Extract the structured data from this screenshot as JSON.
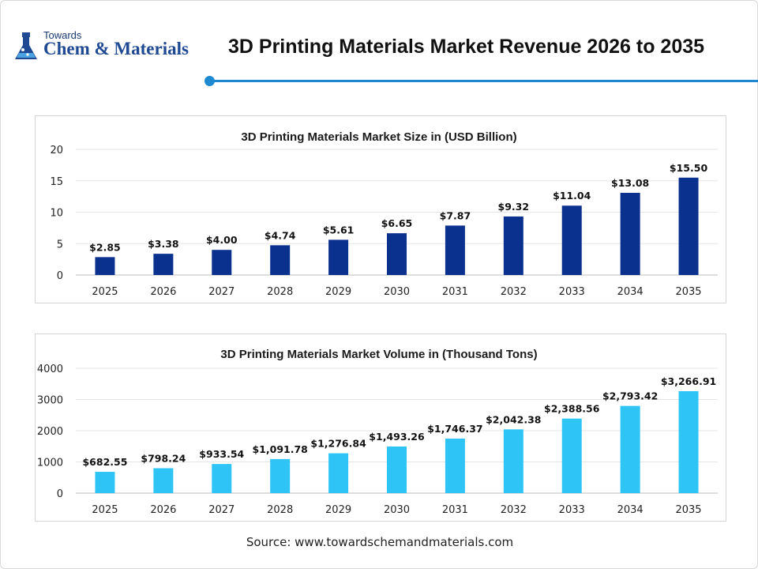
{
  "header": {
    "logo_line1": "Towards",
    "logo_line2": "Chem & Materials",
    "title": "3D Printing Materials Market Revenue 2026 to 2035"
  },
  "colors": {
    "accent": "#1e88d0",
    "size_bar": "#0b318f",
    "volume_bar": "#2ec4f6"
  },
  "source": "Source: www.towardschemandmaterials.com",
  "chart_data": [
    {
      "type": "bar",
      "title": "3D Printing Materials Market Size in (USD Billion)",
      "categories": [
        "2025",
        "2026",
        "2027",
        "2028",
        "2029",
        "2030",
        "2031",
        "2032",
        "2033",
        "2034",
        "2035"
      ],
      "values": [
        2.85,
        3.38,
        4.0,
        4.74,
        5.61,
        6.65,
        7.87,
        9.32,
        11.04,
        13.08,
        15.5
      ],
      "labels": [
        "$2.85",
        "$3.38",
        "$4.00",
        "$4.74",
        "$5.61",
        "$6.65",
        "$7.87",
        "$9.32",
        "$11.04",
        "$13.08",
        "$15.50"
      ],
      "yticks": [
        0,
        5,
        10,
        15,
        20
      ],
      "ylim": [
        0,
        20
      ],
      "grid": true,
      "color": "#0b318f"
    },
    {
      "type": "bar",
      "title": "3D Printing Materials Market Volume in (Thousand Tons)",
      "categories": [
        "2025",
        "2026",
        "2027",
        "2028",
        "2029",
        "2030",
        "2031",
        "2032",
        "2033",
        "2034",
        "2035"
      ],
      "values": [
        682.55,
        798.24,
        933.54,
        1091.78,
        1276.84,
        1493.26,
        1746.37,
        2042.38,
        2388.56,
        2793.42,
        3266.91
      ],
      "labels": [
        "$682.55",
        "$798.24",
        "$933.54",
        "$1,091.78",
        "$1,276.84",
        "$1,493.26",
        "$1,746.37",
        "$2,042.38",
        "$2,388.56",
        "$2,793.42",
        "$3,266.91"
      ],
      "yticks": [
        0,
        1000,
        2000,
        3000,
        4000
      ],
      "ylim": [
        0,
        4000
      ],
      "grid": true,
      "color": "#2ec4f6"
    }
  ]
}
